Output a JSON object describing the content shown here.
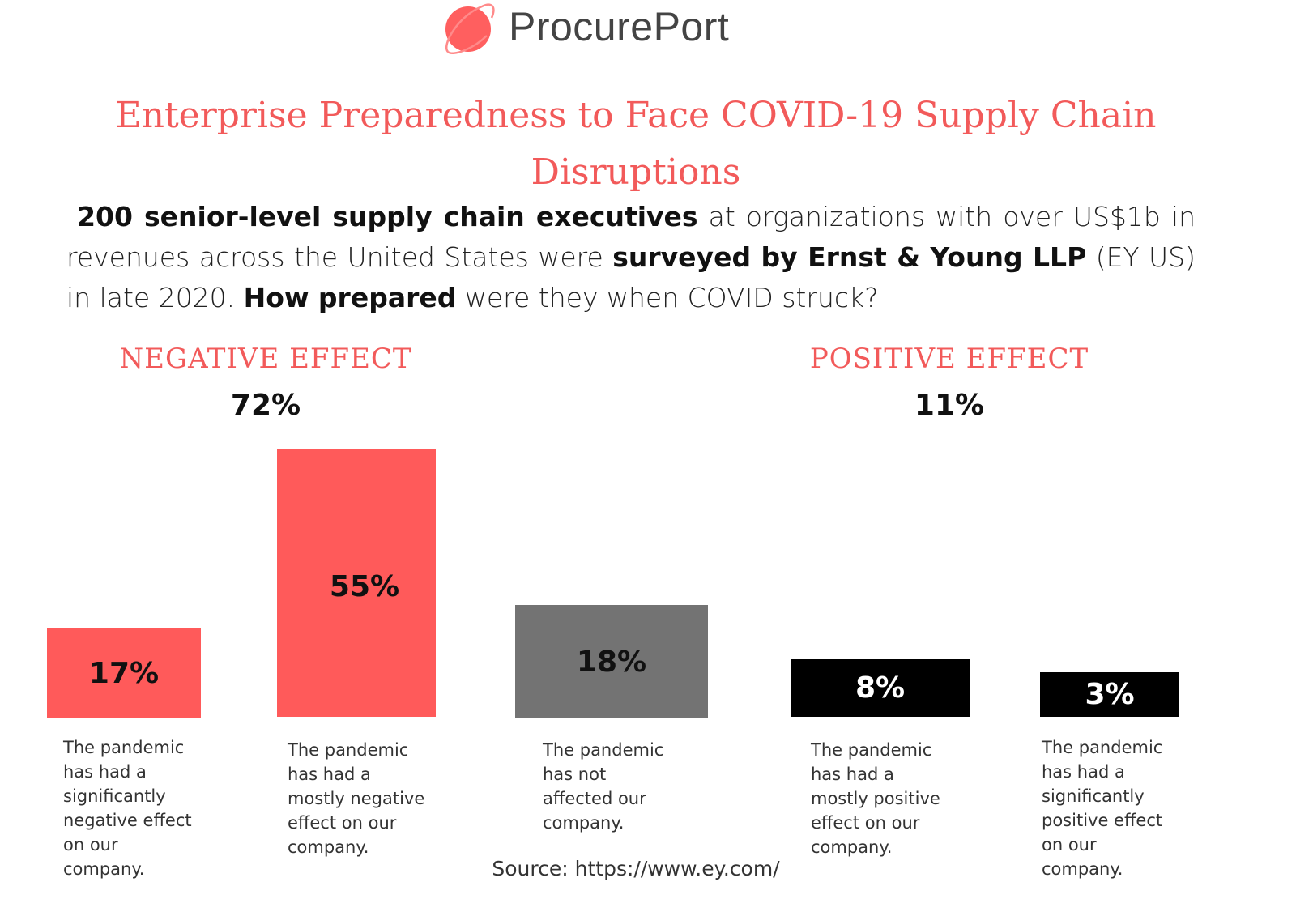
{
  "brand": {
    "name": "ProcurePort",
    "logo_color": "#ff5a5a"
  },
  "title": "Enterprise Preparedness to Face COVID-19 Supply Chain Disruptions",
  "intro": {
    "b1": "200 senior-level supply chain executives",
    "t1": " at organizations with over US$1b in revenues across the United States were ",
    "b2": "surveyed by Ernst & Young LLP",
    "t2": " (EY US) in late 2020. ",
    "b3": "How prepared",
    "t3": " were they when COVID struck?"
  },
  "chart_data": {
    "type": "bar",
    "groups": [
      {
        "title": "NEGATIVE EFFECT",
        "total": "72%"
      },
      {
        "title": "POSITIVE EFFECT",
        "total": "11%"
      }
    ],
    "categories": [
      "The pandemic has had a significantly negative effect on our company.",
      "The pandemic has had a mostly negative effect on our company.",
      "The pandemic has not affected our company.",
      "The pandemic has had a mostly positive effect on our company.",
      "The pandemic has had a significantly positive effect on our company."
    ],
    "values": [
      17,
      55,
      18,
      8,
      3
    ],
    "labels": [
      "17%",
      "55%",
      "18%",
      "8%",
      "3%"
    ],
    "colors": [
      "#ff5a5a",
      "#ff5a5a",
      "#737373",
      "#000000",
      "#000000"
    ]
  },
  "source": "Source: https://www.ey.com/"
}
